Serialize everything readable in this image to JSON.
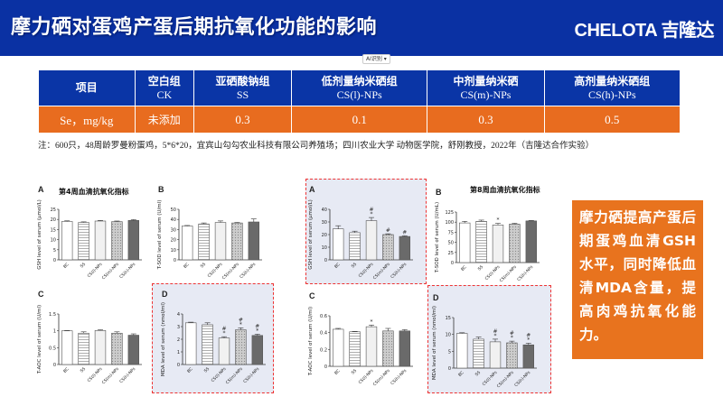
{
  "header": {
    "title": "摩力硒对蛋鸡产蛋后期抗氧化功能的影响",
    "logo": "CHELOTA 吉隆达"
  },
  "ai_chip": "AI识别 ▾",
  "table": {
    "headers": [
      [
        "项目",
        ""
      ],
      [
        "空白组",
        "CK"
      ],
      [
        "亚硒酸钠组",
        "SS"
      ],
      [
        "低剂量纳米硒组",
        "CS(l)-NPs"
      ],
      [
        "中剂量纳米硒",
        "CS(m)-NPs"
      ],
      [
        "高剂量纳米硒组",
        "CS(h)-NPs"
      ]
    ],
    "row": [
      "Se，mg/kg",
      "未添加",
      "0.3",
      "0.1",
      "0.3",
      "0.5"
    ]
  },
  "note": "注：600只，48周龄罗曼粉蛋鸡，5*6*20，宜宾山勾勾农业科技有限公司养殖场；四川农业大学 动物医学院，舒刚教授，2022年（吉隆达合作实验）",
  "week4_title": "第4周血清抗氧化指标",
  "week8_title": "第8周血清抗氧化指标",
  "side_text": "摩力硒提高产蛋后期蛋鸡血清GSH水平，同时降低血清MDA含量，提高肉鸡抗氧化能力。",
  "colors": {
    "header": "#0a31a3",
    "orange": "#e86c1f",
    "highlight_bg": "#e7eaf4",
    "highlight_border": "#e33"
  },
  "chart_data": [
    {
      "id": "A4",
      "panel": "A",
      "type": "bar",
      "ylabel": "GSH level of serum (μmol/L)",
      "ylim": [
        0,
        25
      ],
      "ticks": [
        0,
        5,
        10,
        15,
        20,
        25
      ],
      "categories": [
        "BC",
        "SS",
        "CS(l)-NPs",
        "CS(m)-NPs",
        "CS(h)-NPs"
      ],
      "values": [
        19,
        18.5,
        19.2,
        18.9,
        19.5
      ],
      "errors": [
        0.3,
        0.3,
        0.3,
        0.3,
        0.4
      ],
      "annotations": [
        "",
        "",
        "",
        "",
        ""
      ]
    },
    {
      "id": "B4",
      "panel": "B",
      "type": "bar",
      "ylabel": "T-SOD level of serum (U/ml)",
      "ylim": [
        0,
        50
      ],
      "ticks": [
        0,
        10,
        20,
        30,
        40,
        50
      ],
      "categories": [
        "BC",
        "SS",
        "CS(l)-NPs",
        "CS(m)-NPs",
        "CS(h)-NPs"
      ],
      "values": [
        33.5,
        35.5,
        37,
        36.5,
        37.5
      ],
      "errors": [
        0.5,
        1,
        1.5,
        0.5,
        3
      ],
      "annotations": [
        "",
        "",
        "",
        "",
        ""
      ]
    },
    {
      "id": "C4",
      "panel": "C",
      "type": "bar",
      "ylabel": "T-AOC level of serum (U/ml)",
      "ylim": [
        0,
        1.5
      ],
      "ticks": [
        0,
        0.5,
        1.0,
        1.5
      ],
      "categories": [
        "BC",
        "SS",
        "CS(l)-NPs",
        "CS(m)-NPs",
        "CS(h)-NPs"
      ],
      "values": [
        1.0,
        0.93,
        1.01,
        0.93,
        0.87
      ],
      "errors": [
        0.01,
        0.04,
        0.02,
        0.04,
        0.04
      ],
      "annotations": [
        "",
        "",
        "",
        "",
        ""
      ]
    },
    {
      "id": "D4",
      "panel": "D",
      "type": "bar",
      "ylabel": "MDA level of serum (nmol/ml)",
      "ylim": [
        0,
        4
      ],
      "ticks": [
        0,
        1,
        2,
        3,
        4
      ],
      "categories": [
        "BC",
        "SS",
        "CS(l)-NPs",
        "CS(m)-NPs",
        "CS(h)-NPs"
      ],
      "values": [
        3.3,
        3.15,
        2.1,
        2.75,
        2.3
      ],
      "errors": [
        0.05,
        0.15,
        0.1,
        0.15,
        0.1
      ],
      "annotations": [
        "",
        "",
        "*#",
        "*#",
        "*#"
      ]
    },
    {
      "id": "A8",
      "panel": "A",
      "type": "bar",
      "ylabel": "GSH level of serum (μmol/L)",
      "ylim": [
        0,
        40
      ],
      "ticks": [
        0,
        10,
        20,
        30,
        40
      ],
      "categories": [
        "BC",
        "SS",
        "CS(l)-NPs",
        "CS(m)-NPs",
        "CS(h)-NPs"
      ],
      "values": [
        24.5,
        21.5,
        31,
        20,
        18.5
      ],
      "errors": [
        2.5,
        1.2,
        2.5,
        0.6,
        0.5
      ],
      "annotations": [
        "",
        "",
        "*#",
        "#",
        "#"
      ]
    },
    {
      "id": "B8",
      "panel": "B",
      "type": "bar",
      "ylabel": "T-SOD level of serum (U/mL)",
      "ylim": [
        0,
        125
      ],
      "ticks": [
        0,
        25,
        50,
        75,
        100,
        125
      ],
      "categories": [
        "BC",
        "SS",
        "CS(l)-NPs",
        "CS(m)-NPs",
        "CS(h)-NPs"
      ],
      "values": [
        98,
        102,
        93,
        95,
        103
      ],
      "errors": [
        4,
        3,
        4,
        2,
        1
      ],
      "annotations": [
        "",
        "",
        "*",
        "",
        ""
      ]
    },
    {
      "id": "C8",
      "panel": "C",
      "type": "bar",
      "ylabel": "T-AOC level of serum (U/ml)",
      "ylim": [
        0,
        0.6
      ],
      "ticks": [
        0,
        0.2,
        0.4,
        0.6
      ],
      "categories": [
        "BC",
        "SS",
        "CS(l)-NPs",
        "CS(m)-NPs",
        "CS(h)-NPs"
      ],
      "values": [
        0.44,
        0.41,
        0.47,
        0.42,
        0.42
      ],
      "errors": [
        0.01,
        0.005,
        0.02,
        0.03,
        0.015
      ],
      "annotations": [
        "",
        "",
        "*",
        "",
        ""
      ]
    },
    {
      "id": "D8",
      "panel": "D",
      "type": "bar",
      "ylabel": "MDA level of serum (nmol/ml)",
      "ylim": [
        0,
        15
      ],
      "ticks": [
        0,
        5,
        10,
        15
      ],
      "categories": [
        "BC",
        "SS",
        "CS(l)-NPs",
        "CS(m)-NPs",
        "CS(h)-NPs"
      ],
      "values": [
        10.3,
        8.6,
        7.8,
        7.5,
        6.9
      ],
      "errors": [
        0.2,
        0.6,
        0.8,
        0.5,
        0.5
      ],
      "annotations": [
        "",
        "",
        "*#",
        "*#",
        "*#"
      ]
    }
  ]
}
